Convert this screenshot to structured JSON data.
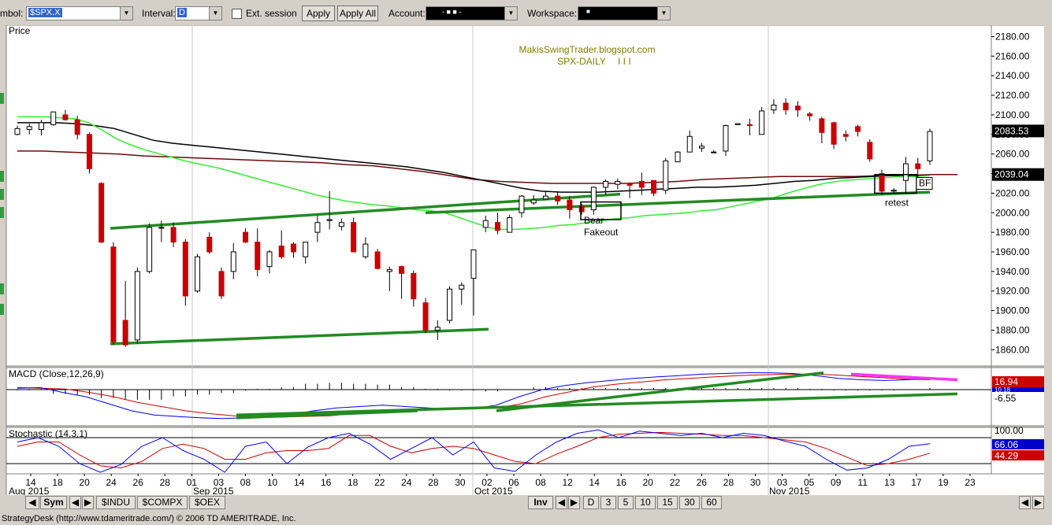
{
  "toolbar": {
    "symbol_label": "mbol:",
    "symbol_value": "$SPX.X",
    "interval_label": "Interval:",
    "interval_value": "D",
    "ext_session_label": "Ext. session",
    "apply_label": "Apply",
    "apply_all_label": "Apply All",
    "account_label": "Account:",
    "account_value": "- ■ ■ -",
    "workspace_label": "Workspace:",
    "workspace_value": "■"
  },
  "bottom": {
    "sym_label": "Sym",
    "tabs": [
      "$INDU",
      "$COMPX",
      "$OEX"
    ],
    "inv_label": "Inv",
    "intervals": [
      "D",
      "3",
      "5",
      "10",
      "15",
      "30",
      "60"
    ]
  },
  "status": "StrategyDesk (http://www.tdameritrade.com/) © 2006 TD AMERITRADE, Inc.",
  "colors": {
    "up_candle": "#ffffff",
    "down_candle": "#cc0000",
    "sma_green": "#33ee33",
    "sma_black": "#000000",
    "sma_darkred": "#6b0a0a",
    "trendline": "#228b22",
    "macd_line": "#0000ff",
    "signal_line": "#cc0000",
    "projection": "#ff33ff",
    "price_badge": "#000000"
  },
  "chart_data": [
    {
      "type": "candlestick",
      "panel": "Price",
      "title_label": "Price",
      "watermark_line1": "MakisSwingTrader.blogspot.com",
      "watermark_line2": "SPX-DAILY",
      "watermark_marks": "I I I",
      "ylim": [
        1845,
        2190
      ],
      "y_ticks": [
        "2180.00",
        "2160.00",
        "2140.00",
        "2120.00",
        "2100.00",
        "2080.00",
        "2060.00",
        "2040.00",
        "2020.00",
        "2000.00",
        "1980.00",
        "1960.00",
        "1940.00",
        "1920.00",
        "1900.00",
        "1880.00",
        "1860.00"
      ],
      "x_days": [
        "14",
        "18",
        "20",
        "24",
        "26",
        "28",
        "01",
        "03",
        "08",
        "10",
        "14",
        "16",
        "18",
        "22",
        "24",
        "28",
        "30",
        "02",
        "06",
        "08",
        "12",
        "14",
        "16",
        "20",
        "22",
        "26",
        "28",
        "30",
        "03",
        "05",
        "09",
        "11",
        "13",
        "17",
        "19",
        "23"
      ],
      "x_months": [
        "Aug 2015",
        "Sep 2015",
        "Oct 2015",
        "Nov 2015"
      ],
      "price_badges": [
        "2083.53",
        "2039.04"
      ],
      "annotations": [
        "Bear",
        "Fakeout",
        "retest",
        "BF"
      ],
      "candles": [
        [
          2080,
          2086,
          2079,
          2089
        ],
        [
          2085,
          2088,
          2080,
          2091
        ],
        [
          2085,
          2092,
          2079,
          2095
        ],
        [
          2090,
          2103,
          2089,
          2103
        ],
        [
          2100,
          2095,
          2094,
          2105
        ],
        [
          2095,
          2080,
          2075,
          2099
        ],
        [
          2080,
          2045,
          2040,
          2082
        ],
        [
          2030,
          1970,
          1969,
          2031
        ],
        [
          1965,
          1868,
          1865,
          1970
        ],
        [
          1890,
          1865,
          1863,
          1930
        ],
        [
          1870,
          1940,
          1866,
          1944
        ],
        [
          1940,
          1985,
          1938,
          1989
        ],
        [
          1985,
          1985,
          1970,
          1992
        ],
        [
          1985,
          1970,
          1965,
          1990
        ],
        [
          1970,
          1915,
          1905,
          1973
        ],
        [
          1920,
          1955,
          1918,
          1958
        ],
        [
          1975,
          1960,
          1958,
          1980
        ],
        [
          1940,
          1915,
          1912,
          1944
        ],
        [
          1940,
          1960,
          1932,
          1969
        ],
        [
          1980,
          1970,
          1969,
          1984
        ],
        [
          1970,
          1942,
          1935,
          1984
        ],
        [
          1945,
          1960,
          1938,
          1962
        ],
        [
          1966,
          1955,
          1953,
          1982
        ],
        [
          1968,
          1960,
          1954,
          1970
        ],
        [
          1955,
          1970,
          1948,
          1968
        ],
        [
          1980,
          1990,
          1970,
          1997
        ],
        [
          1992,
          1993,
          1983,
          2022
        ],
        [
          1986,
          1990,
          1982,
          1994
        ],
        [
          1990,
          1960,
          1960,
          1995
        ],
        [
          1955,
          1968,
          1953,
          1975
        ],
        [
          1960,
          1943,
          1942,
          1963
        ],
        [
          1940,
          1942,
          1920,
          1945
        ],
        [
          1945,
          1938,
          1912,
          1946
        ],
        [
          1938,
          1912,
          1904,
          1941
        ],
        [
          1908,
          1880,
          1877,
          1913
        ],
        [
          1880,
          1883,
          1870,
          1890
        ],
        [
          1890,
          1922,
          1887,
          1925
        ],
        [
          1922,
          1926,
          1906,
          1929
        ],
        [
          1933,
          1962,
          1895,
          1962
        ],
        [
          1985,
          1992,
          1980,
          1997
        ],
        [
          1990,
          1982,
          1978,
          2000
        ],
        [
          1980,
          1995,
          1980,
          1998
        ],
        [
          2000,
          2017,
          1995,
          2018
        ],
        [
          2010,
          2013,
          2008,
          2018
        ],
        [
          2014,
          2017,
          2013,
          2022
        ],
        [
          2017,
          2012,
          2008,
          2022
        ],
        [
          2013,
          2003,
          1994,
          2017
        ],
        [
          2007,
          2001,
          1998,
          2009
        ],
        [
          2003,
          2026,
          1998,
          2027
        ],
        [
          2026,
          2032,
          2018,
          2034
        ],
        [
          2029,
          2032,
          2024,
          2035
        ],
        [
          2030,
          2028,
          2015,
          2031
        ],
        [
          2032,
          2026,
          2018,
          2041
        ],
        [
          2033,
          2020,
          2017,
          2033
        ],
        [
          2023,
          2053,
          2019,
          2056
        ],
        [
          2052,
          2062,
          2052,
          2063
        ],
        [
          2062,
          2078,
          2062,
          2084
        ],
        [
          2066,
          2068,
          2062,
          2071
        ],
        [
          2062,
          2062,
          2062,
          2064
        ],
        [
          2063,
          2089,
          2058,
          2090
        ],
        [
          2090,
          2091,
          2090,
          2091
        ],
        [
          2090,
          2089,
          2079,
          2096
        ],
        [
          2080,
          2104,
          2080,
          2108
        ],
        [
          2105,
          2110,
          2101,
          2116
        ],
        [
          2112,
          2105,
          2100,
          2117
        ],
        [
          2109,
          2105,
          2098,
          2114
        ],
        [
          2101,
          2099,
          2094,
          2103
        ],
        [
          2096,
          2082,
          2071,
          2098
        ],
        [
          2092,
          2070,
          2065,
          2093
        ],
        [
          2080,
          2078,
          2073,
          2084
        ],
        [
          2088,
          2083,
          2078,
          2090
        ],
        [
          2072,
          2055,
          2052,
          2075
        ],
        [
          2040,
          2022,
          2018,
          2044
        ],
        [
          2022,
          2023,
          2020,
          2025
        ],
        [
          2033,
          2050,
          2020,
          2057
        ],
        [
          2050,
          2045,
          2034,
          2056
        ],
        [
          2053,
          2083,
          2049,
          2086
        ]
      ],
      "sma_green": [
        2098,
        2098,
        2098,
        2097,
        2096,
        2092,
        2084,
        2075,
        2069,
        2064,
        2060,
        2056,
        2052,
        2049,
        2046,
        2042,
        2038,
        2034,
        2030,
        2026,
        2022,
        2018,
        2015,
        2012,
        2010,
        2008,
        2007,
        2005,
        2003,
        2002,
        2000,
        1995,
        1990,
        1985,
        1983,
        1983,
        1984,
        1985,
        1987,
        1988,
        1990,
        1992,
        1994,
        1995,
        1997,
        1998,
        1999,
        2000,
        2002,
        2003,
        2006,
        2009,
        2012,
        2015,
        2020,
        2024,
        2028,
        2031,
        2033,
        2034,
        2035,
        2036,
        2037,
        2037,
        2038
      ],
      "sma_black": [
        2092,
        2092,
        2092,
        2091,
        2089,
        2086,
        2080,
        2074,
        2071,
        2069,
        2067,
        2065,
        2063,
        2061,
        2059,
        2057,
        2055,
        2053,
        2051,
        2049,
        2047,
        2044,
        2041,
        2037,
        2033,
        2029,
        2025,
        2022,
        2021,
        2021,
        2021,
        2022,
        2023,
        2024,
        2025,
        2026,
        2026,
        2027,
        2028,
        2030,
        2032,
        2033,
        2035,
        2036,
        2037,
        2038,
        2038,
        2038
      ],
      "sma_darkred": [
        2063,
        2063,
        2062,
        2061,
        2060,
        2058,
        2057,
        2056,
        2055,
        2054,
        2053,
        2052,
        2051,
        2049,
        2048,
        2045,
        2042,
        2038,
        2034,
        2032,
        2031,
        2030,
        2030,
        2030,
        2030,
        2031,
        2032,
        2034,
        2035,
        2036,
        2037,
        2037,
        2037,
        2037,
        2038,
        2038,
        2039,
        2039
      ],
      "support_line": [
        [
          1866,
          1881
        ]
      ],
      "top_line": [
        [
          1984,
          2019
        ]
      ],
      "rising_line": [
        [
          2000,
          2021
        ]
      ]
    },
    {
      "type": "line",
      "panel": "MACD",
      "title_label": "MACD (Close,12,26,9)",
      "value_badges": [
        "16.94",
        "10.18",
        "-6.55"
      ],
      "macd": [
        2,
        3,
        -4,
        -10,
        -20,
        -30,
        -36,
        -38,
        -40,
        -41,
        -40,
        -38,
        -35,
        -30,
        -26,
        -24,
        -22,
        -24,
        -26,
        -28,
        -27,
        -22,
        -10,
        0,
        6,
        10,
        13,
        16,
        18,
        20,
        22,
        23,
        24,
        24,
        23,
        20,
        16,
        14,
        13,
        14,
        16
      ],
      "signal": [
        3,
        2,
        1,
        -4,
        -10,
        -18,
        -24,
        -30,
        -34,
        -37,
        -39,
        -39,
        -38,
        -37,
        -34,
        -31,
        -28,
        -27,
        -27,
        -27,
        -26,
        -20,
        -10,
        -3,
        4,
        8,
        11,
        14,
        16,
        18,
        20,
        21,
        22,
        22,
        21,
        19,
        17,
        15,
        14
      ]
    },
    {
      "type": "line",
      "panel": "Stochastic",
      "title_label": "Stochastic (14,3,1)",
      "value_badges": [
        "100.00",
        "66.06",
        "44.29"
      ],
      "k": [
        70,
        80,
        60,
        20,
        0,
        18,
        60,
        80,
        50,
        30,
        0,
        60,
        70,
        20,
        58,
        80,
        90,
        65,
        30,
        55,
        80,
        40,
        70,
        10,
        2,
        40,
        70,
        90,
        98,
        80,
        95,
        90,
        85,
        90,
        80,
        90,
        85,
        72,
        60,
        30,
        5,
        10,
        30,
        60,
        66
      ],
      "d": [
        60,
        70,
        70,
        40,
        15,
        10,
        25,
        55,
        65,
        55,
        30,
        30,
        45,
        50,
        50,
        55,
        85,
        85,
        60,
        45,
        55,
        60,
        55,
        40,
        25,
        20,
        42,
        60,
        80,
        88,
        90,
        92,
        90,
        88,
        85,
        85,
        80,
        75,
        70,
        55,
        35,
        15,
        20,
        30,
        44
      ]
    }
  ]
}
